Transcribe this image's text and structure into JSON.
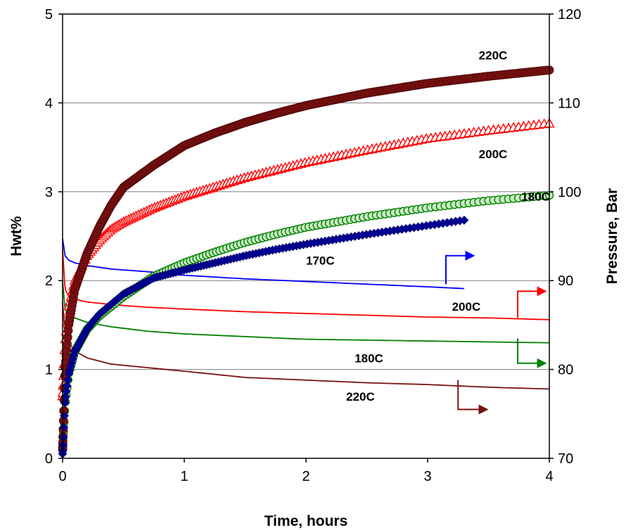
{
  "chart_data": {
    "type": "scatter",
    "xlabel": "Time, hours",
    "ylabel": "Hwt%",
    "y2label": "Pressure, Bar",
    "xlim": [
      0,
      4
    ],
    "ylim": [
      0,
      5
    ],
    "y2lim": [
      70,
      120
    ],
    "x_ticks": [
      "0",
      "1",
      "2",
      "3",
      "4"
    ],
    "y_ticks": [
      "0",
      "1",
      "2",
      "3",
      "4",
      "5"
    ],
    "y2_ticks": [
      "70",
      "80",
      "90",
      "100",
      "110",
      "120"
    ],
    "grid": "horizontal",
    "series": [
      {
        "axis": "left",
        "marker": "circle-filled",
        "color": "#7b1010",
        "x": [
          0,
          0.02,
          0.05,
          0.1,
          0.2,
          0.3,
          0.4,
          0.5,
          0.75,
          1,
          1.25,
          1.5,
          1.75,
          2,
          2.5,
          3,
          3.5,
          4
        ],
        "y": [
          0.1,
          1.0,
          1.5,
          1.9,
          2.3,
          2.6,
          2.85,
          3.05,
          3.3,
          3.52,
          3.66,
          3.78,
          3.88,
          3.97,
          4.11,
          4.22,
          4.3,
          4.37
        ]
      },
      {
        "axis": "left",
        "marker": "triangle-open",
        "color": "#ff0000",
        "x": [
          0,
          0.02,
          0.05,
          0.1,
          0.2,
          0.3,
          0.4,
          0.5,
          0.75,
          1,
          1.5,
          2,
          2.5,
          3,
          3.5,
          4
        ],
        "y": [
          0.7,
          1.3,
          1.7,
          2.0,
          2.28,
          2.45,
          2.58,
          2.66,
          2.82,
          2.95,
          3.16,
          3.33,
          3.47,
          3.6,
          3.69,
          3.77
        ]
      },
      {
        "axis": "left",
        "marker": "circle-open",
        "color": "#008000",
        "x": [
          0,
          0.02,
          0.05,
          0.1,
          0.2,
          0.3,
          0.5,
          0.75,
          1,
          1.25,
          1.5,
          1.75,
          2,
          2.5,
          3,
          3.5,
          4
        ],
        "y": [
          0.1,
          0.6,
          0.95,
          1.2,
          1.45,
          1.6,
          1.82,
          2.05,
          2.2,
          2.32,
          2.43,
          2.52,
          2.6,
          2.72,
          2.82,
          2.9,
          2.96
        ]
      },
      {
        "axis": "left",
        "marker": "diamond-filled",
        "color": "#000099",
        "x": [
          0,
          0.02,
          0.05,
          0.1,
          0.2,
          0.3,
          0.5,
          0.75,
          1,
          1.25,
          1.5,
          1.75,
          2,
          2.5,
          3,
          3.3
        ],
        "y": [
          0.05,
          0.65,
          0.95,
          1.2,
          1.45,
          1.62,
          1.85,
          2.03,
          2.12,
          2.2,
          2.28,
          2.35,
          2.41,
          2.52,
          2.62,
          2.68
        ]
      },
      {
        "axis": "right",
        "line": true,
        "color": "#0000ff",
        "x": [
          0,
          0.02,
          0.05,
          0.1,
          0.2,
          0.4,
          0.7,
          1,
          1.5,
          2,
          2.5,
          3,
          3.3
        ],
        "y": [
          94.7,
          92.8,
          92.3,
          92.0,
          91.7,
          91.3,
          91.0,
          90.6,
          90.2,
          89.9,
          89.6,
          89.3,
          89.1
        ]
      },
      {
        "axis": "right",
        "line": true,
        "color": "#ff0000",
        "x": [
          0,
          0.02,
          0.05,
          0.1,
          0.2,
          0.4,
          0.7,
          1,
          1.5,
          2,
          2.5,
          3,
          3.5,
          4
        ],
        "y": [
          93.5,
          89.0,
          88.3,
          87.9,
          87.6,
          87.3,
          87.0,
          86.8,
          86.5,
          86.3,
          86.1,
          85.9,
          85.8,
          85.6
        ]
      },
      {
        "axis": "right",
        "line": true,
        "color": "#008000",
        "x": [
          0,
          0.02,
          0.05,
          0.1,
          0.2,
          0.4,
          0.7,
          1,
          1.5,
          2,
          2.5,
          3,
          3.5,
          4
        ],
        "y": [
          90.0,
          86.7,
          86.2,
          85.8,
          85.3,
          84.8,
          84.3,
          84.0,
          83.7,
          83.4,
          83.3,
          83.2,
          83.1,
          83.0
        ]
      },
      {
        "axis": "right",
        "line": true,
        "color": "#7b1010",
        "x": [
          0,
          0.02,
          0.05,
          0.1,
          0.2,
          0.4,
          0.7,
          1,
          1.5,
          2,
          2.5,
          3,
          3.5,
          4
        ],
        "y": [
          87.5,
          84.0,
          83.0,
          82.1,
          81.3,
          80.6,
          80.2,
          79.8,
          79.1,
          78.8,
          78.5,
          78.3,
          78.0,
          77.8
        ]
      }
    ],
    "annotations": [
      {
        "text": "220C",
        "x": 3.42,
        "y": 4.49,
        "axis": "left"
      },
      {
        "text": "200C",
        "x": 3.42,
        "y": 3.38,
        "axis": "left"
      },
      {
        "text": "180C",
        "x": 3.77,
        "y": 2.9,
        "axis": "left"
      },
      {
        "text": "170C",
        "x": 2.0,
        "y": 2.18,
        "axis": "left"
      },
      {
        "text": "200C",
        "x": 3.2,
        "y": 1.66,
        "axis": "left"
      },
      {
        "text": "180C",
        "x": 2.4,
        "y": 1.08,
        "axis": "left"
      },
      {
        "text": "220C",
        "x": 2.33,
        "y": 0.65,
        "axis": "left"
      }
    ],
    "arrows": [
      {
        "color": "#0000ff",
        "x0": 3.15,
        "y0": 89.6,
        "y1": 92.8,
        "x1": 3.39
      },
      {
        "color": "#ff0000",
        "x0": 3.74,
        "y0": 85.8,
        "y1": 88.8,
        "x1": 3.98
      },
      {
        "color": "#008000",
        "x0": 3.74,
        "y0": 83.5,
        "y1": 80.7,
        "x1": 3.98
      },
      {
        "color": "#7b1010",
        "x0": 3.25,
        "y0": 78.8,
        "y1": 75.5,
        "x1": 3.5
      }
    ]
  }
}
